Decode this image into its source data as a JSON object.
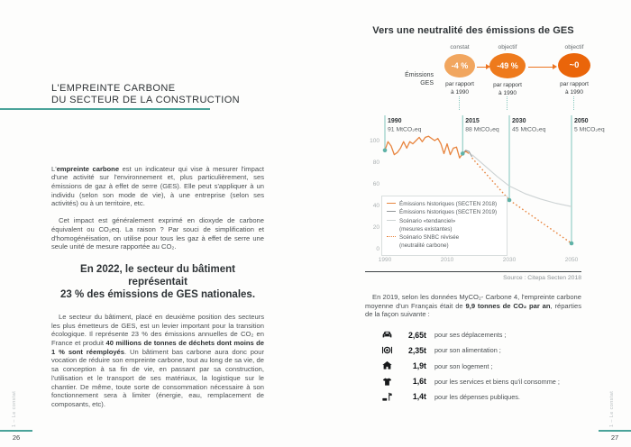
{
  "colors": {
    "teal": "#4aa39a",
    "teal_light": "#8ac9c0",
    "orange": "#ed7420",
    "ink": "#2e3336",
    "body": "#4a4f52",
    "muted": "#666c6f"
  },
  "left_page": {
    "title_line1": "L'EMPREINTE CARBONE",
    "title_line2": "DU SECTEUR DE LA CONSTRUCTION",
    "para1": [
      {
        "t": "L'"
      },
      {
        "t": "empreinte carbone",
        "b": true
      },
      {
        "t": " est un indicateur qui vise à mesurer l'impact d'une activité sur l'environnement et, plus particulièrement, ses émissions de gaz à effet de serre (GES). Elle peut s'appliquer à un individu (selon son mode de vie), à une entreprise (selon ses activités) ou à un territoire, etc."
      }
    ],
    "para2": [
      {
        "t": "Cet impact est généralement exprimé en dioxyde de carbone équivalent ou CO₂eq. La raison ? Par souci de simplification et d'homogénéisation, on utilise pour tous les gaz à effet de serre une seule unité de mesure rapportée au CO₂."
      }
    ],
    "statement_line1": "En 2022, le secteur du bâtiment représentait",
    "statement_line2": "23 % des émissions de GES nationales.",
    "para3": [
      {
        "t": "Le secteur du bâtiment, placé en deuxième position des secteurs les plus émetteurs de GES, est un levier important pour la transition écologique. Il représente 23 % des émissions annuelles de CO₂ en France et produit "
      },
      {
        "t": "40 millions de tonnes de déchets dont moins de 1 % sont réemployés",
        "b": true
      },
      {
        "t": ". Un bâtiment bas carbone aura donc pour vocation de réduire son empreinte carbone, tout au long de sa vie, de sa conception à sa fin de vie, en passant par sa construction, l'utilisation et le transport de ses matériaux, la logistique sur le chantier. De même, toute sorte de consommation nécessaire à son fonctionnement sera à limiter (énergie, eau, remplacement de composants, etc)."
      }
    ],
    "footer": {
      "section": "1 – Le constat",
      "page": "26"
    }
  },
  "right_page": {
    "chart_title": "Vers une neutralité des émissions de GES",
    "flow": {
      "axis_label_line1": "Émissions",
      "axis_label_line2": "GES",
      "nodes": [
        {
          "tag": "constat",
          "value": "-4 %",
          "note_line1": "par rapport",
          "note_line2": "à 1990",
          "color": "#f1a65f"
        },
        {
          "tag": "objectif",
          "value": "-49 %",
          "note_line1": "par rapport",
          "note_line2": "à 1990",
          "color": "#ee7a1c"
        },
        {
          "tag": "objectif",
          "value": "~0",
          "note_line1": "par rapport",
          "note_line2": "à 1990",
          "color": "#ea650a"
        }
      ]
    },
    "source": "Source : Citepa Secten 2018",
    "impact_intro": [
      {
        "t": "En 2019, selon les données MyCO₂- Carbone 4, l'empreinte carbone moyenne d'un Français était de "
      },
      {
        "t": "9,9 tonnes de CO₂ par an",
        "b": true
      },
      {
        "t": ", réparties de la façon suivante :"
      }
    ],
    "impact_items": [
      {
        "icon": "car",
        "value": "2,65t",
        "label": "pour ses déplacements ;"
      },
      {
        "icon": "food",
        "value": "2,35t",
        "label": "pour son alimentation ;"
      },
      {
        "icon": "house",
        "value": "1,9t",
        "label": "pour son logement ;"
      },
      {
        "icon": "shirt",
        "value": "1,6t",
        "label": "pour les services et biens qu'il consomme ;"
      },
      {
        "icon": "public",
        "value": "1,4t",
        "label": "pour les dépenses publiques."
      }
    ],
    "footer": {
      "section": "1 – Le constat",
      "page": "27"
    }
  },
  "chart_data": {
    "type": "line",
    "title": "Vers une neutralité des émissions de GES",
    "unit": "MtCO₂eq",
    "xlim": [
      1985,
      2056
    ],
    "ylim": [
      0,
      110
    ],
    "x_ticks": [
      1990,
      2010,
      2030,
      2050
    ],
    "y_ticks": [
      0,
      20,
      40,
      60,
      80,
      100
    ],
    "grid": false,
    "legend_position": "lower-left",
    "series": [
      {
        "id": "secten2018",
        "name": "Émissions historiques (SECTEN 2018)",
        "legend_lines": [
          "Émissions historiques (SECTEN 2018)"
        ],
        "style": "solid",
        "color": "#e8853f",
        "width": 1.3,
        "points": [
          [
            1990,
            91
          ],
          [
            1991,
            99
          ],
          [
            1992,
            95
          ],
          [
            1993,
            87
          ],
          [
            1994,
            89
          ],
          [
            1995,
            93
          ],
          [
            1996,
            99
          ],
          [
            1997,
            93
          ],
          [
            1998,
            99
          ],
          [
            1999,
            97
          ],
          [
            2000,
            100
          ],
          [
            2001,
            103
          ],
          [
            2002,
            99
          ],
          [
            2003,
            103
          ],
          [
            2004,
            104
          ],
          [
            2005,
            102
          ],
          [
            2006,
            100
          ],
          [
            2007,
            102
          ],
          [
            2008,
            97
          ],
          [
            2009,
            88
          ],
          [
            2010,
            97
          ],
          [
            2011,
            87
          ],
          [
            2012,
            93
          ],
          [
            2013,
            94
          ],
          [
            2014,
            84
          ],
          [
            2015,
            88
          ],
          [
            2016,
            90
          ],
          [
            2017,
            88
          ]
        ]
      },
      {
        "id": "secten2019",
        "name": "Émissions historiques (SECTEN 2019)",
        "legend_lines": [
          "Émissions historiques (SECTEN 2019)"
        ],
        "style": "solid",
        "color": "#93989a",
        "width": 1.1,
        "points": [
          [
            2015,
            88
          ],
          [
            2016,
            91
          ],
          [
            2017,
            90
          ],
          [
            2018,
            85
          ]
        ]
      },
      {
        "id": "tendanciel",
        "name": "Scénario «tendanciel» (mesures existantes)",
        "legend_lines": [
          "Scénario «tendanciel»",
          "(mesures existantes)"
        ],
        "style": "solid",
        "color": "#cdd3d4",
        "width": 1.1,
        "points": [
          [
            2018,
            87
          ],
          [
            2022,
            77
          ],
          [
            2026,
            67
          ],
          [
            2030,
            58
          ],
          [
            2035,
            51
          ],
          [
            2040,
            46
          ],
          [
            2045,
            42
          ],
          [
            2050,
            39
          ]
        ]
      },
      {
        "id": "snbc",
        "name": "Scénario SNBC révisée (neutralité carbone)",
        "legend_lines": [
          "Scénario SNBC révisée",
          "(neutralité carbone)"
        ],
        "style": "dotted",
        "color": "#e8853f",
        "width": 1.4,
        "points": [
          [
            2018,
            84
          ],
          [
            2022,
            71
          ],
          [
            2026,
            58
          ],
          [
            2030,
            45
          ],
          [
            2035,
            35
          ],
          [
            2040,
            25
          ],
          [
            2045,
            15
          ],
          [
            2050,
            5
          ]
        ]
      }
    ],
    "markers": [
      {
        "year": 1990,
        "value": 91,
        "year_label": "1990",
        "value_label": "91 MtCO₂eq"
      },
      {
        "year": 2015,
        "value": 88,
        "year_label": "2015",
        "value_label": "88 MtCO₂eq"
      },
      {
        "year": 2030,
        "value": 45,
        "year_label": "2030",
        "value_label": "45 MtCO₂eq"
      },
      {
        "year": 2050,
        "value": 5,
        "year_label": "2050",
        "value_label": "5 MtCO₂eq"
      }
    ],
    "source": "Source : Citepa Secten 2018"
  }
}
